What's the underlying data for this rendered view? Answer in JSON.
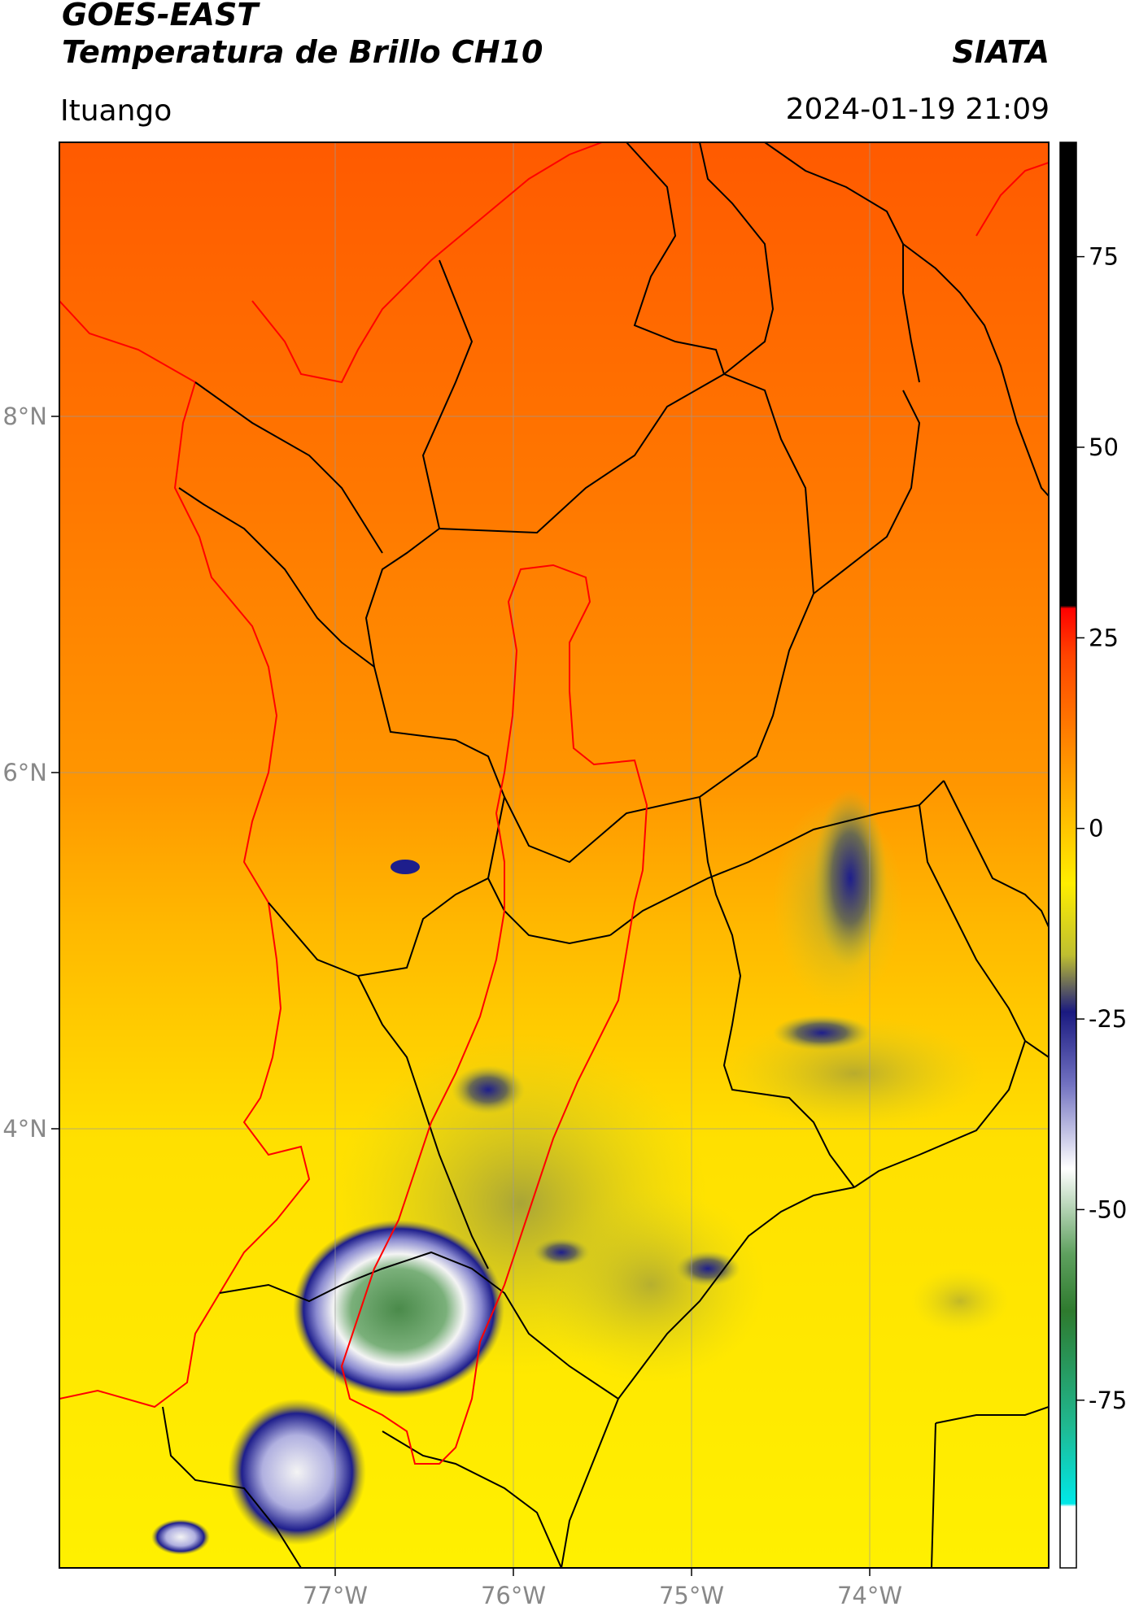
{
  "header": {
    "title_line1": "GOES-EAST",
    "title_line2": "Temperatura de Brillo CH10",
    "brand": "SIATA",
    "location": "Ituango",
    "timestamp": "2024-01-19 21:09"
  },
  "map": {
    "latitude_labels": [
      "8°N",
      "6°N",
      "4°N"
    ],
    "longitude_labels": [
      "77°W",
      "76°W",
      "75°W",
      "74°W"
    ],
    "colors": {
      "warm": "#ff6a00",
      "warm_light": "#ff9a00",
      "mid": "#ffe000",
      "cold_blue": "#1e1e8c",
      "cold_white": "#f2f2f2",
      "cold_green": "#4a9a4a",
      "basin_outline": "#ff0000",
      "borders": "#000000"
    }
  },
  "colorbar": {
    "tick_labels": [
      "75",
      "50",
      "25",
      "0",
      "-25",
      "-50",
      "-75"
    ],
    "tick_values": [
      75,
      50,
      25,
      0,
      -25,
      -50,
      -75
    ],
    "range": [
      -97,
      90
    ]
  }
}
